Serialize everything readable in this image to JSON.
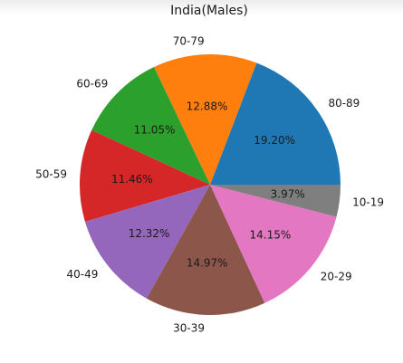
{
  "chart_data": {
    "type": "pie",
    "title": "India(Males)",
    "start_angle_deg": 0,
    "direction": "counterclockwise",
    "categories": [
      "80-89",
      "70-79",
      "60-69",
      "50-59",
      "40-49",
      "30-39",
      "20-29",
      "10-19"
    ],
    "values": [
      19.2,
      12.88,
      11.05,
      11.46,
      12.32,
      14.97,
      14.15,
      3.97
    ],
    "percent_labels": [
      "19.20%",
      "12.88%",
      "11.05%",
      "11.46%",
      "12.32%",
      "14.97%",
      "14.15%",
      "3.97%"
    ],
    "colors": [
      "#1f77b4",
      "#ff7f0e",
      "#2ca02c",
      "#d62728",
      "#9467bd",
      "#8c564b",
      "#e377c2",
      "#7f7f7f"
    ],
    "legend": "none"
  }
}
